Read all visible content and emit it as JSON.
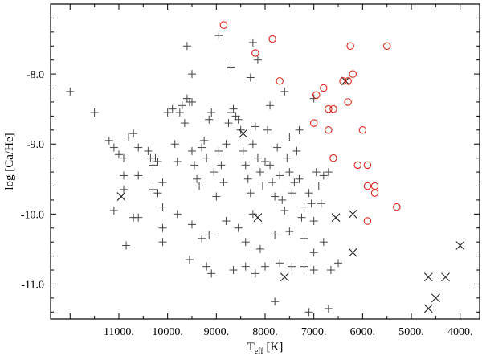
{
  "chart_data": {
    "type": "scatter",
    "title": "",
    "xlabel": {
      "main": "T",
      "sub": "eff",
      "unit": "[K]"
    },
    "ylabel": "log [Ca/He]",
    "xlim": [
      12400,
      3600
    ],
    "ylim": [
      -11.5,
      -7.0
    ],
    "x_reversed": true,
    "grid": false,
    "legend": "none",
    "x_tick_values": [
      11000,
      10000,
      9000,
      8000,
      7000,
      6000,
      5000,
      4000
    ],
    "x_tick_labels": [
      "11000.",
      "10000.",
      "9000.",
      "8000.",
      "7000.",
      "6000.",
      "5000.",
      "4000."
    ],
    "y_tick_values": [
      -8.0,
      -9.0,
      -10.0,
      -11.0
    ],
    "y_tick_labels": [
      "-8.0",
      "-9.0",
      "-10.0",
      "-11.0"
    ],
    "colors": {
      "plus": "#444444",
      "cross": "#222222",
      "circle": "#e0261f",
      "axis": "#000000"
    },
    "series": [
      {
        "marker": "plus",
        "points": [
          [
            12000,
            -8.25
          ],
          [
            11500,
            -8.55
          ],
          [
            11200,
            -8.95
          ],
          [
            11100,
            -9.05
          ],
          [
            11000,
            -9.15
          ],
          [
            10900,
            -9.2
          ],
          [
            10900,
            -9.65
          ],
          [
            11100,
            -9.95
          ],
          [
            10800,
            -8.9
          ],
          [
            10700,
            -8.85
          ],
          [
            10600,
            -9.05
          ],
          [
            10600,
            -9.45
          ],
          [
            10700,
            -10.05
          ],
          [
            10600,
            -10.05
          ],
          [
            10850,
            -10.45
          ],
          [
            10900,
            -9.45
          ],
          [
            10400,
            -9.1
          ],
          [
            10350,
            -9.2
          ],
          [
            10300,
            -9.3
          ],
          [
            10250,
            -9.2
          ],
          [
            10200,
            -9.25
          ],
          [
            10300,
            -9.65
          ],
          [
            10200,
            -9.7
          ],
          [
            10100,
            -9.55
          ],
          [
            10100,
            -9.9
          ],
          [
            10100,
            -10.2
          ],
          [
            10100,
            -10.4
          ],
          [
            10000,
            -8.55
          ],
          [
            9900,
            -8.5
          ],
          [
            9850,
            -9.0
          ],
          [
            9800,
            -9.25
          ],
          [
            9750,
            -8.55
          ],
          [
            9700,
            -8.45
          ],
          [
            9650,
            -8.7
          ],
          [
            9600,
            -8.35
          ],
          [
            9550,
            -8.4
          ],
          [
            9500,
            -8.4
          ],
          [
            9500,
            -9.1
          ],
          [
            9450,
            -9.3
          ],
          [
            9400,
            -9.5
          ],
          [
            9350,
            -9.6
          ],
          [
            9300,
            -9.05
          ],
          [
            9250,
            -8.95
          ],
          [
            9200,
            -9.2
          ],
          [
            9150,
            -8.65
          ],
          [
            9100,
            -8.55
          ],
          [
            9050,
            -9.4
          ],
          [
            9000,
            -9.75
          ],
          [
            8950,
            -9.1
          ],
          [
            8900,
            -9.3
          ],
          [
            8850,
            -9.55
          ],
          [
            8800,
            -9.0
          ],
          [
            8750,
            -8.7
          ],
          [
            8700,
            -8.55
          ],
          [
            8650,
            -8.5
          ],
          [
            8600,
            -8.6
          ],
          [
            8550,
            -8.65
          ],
          [
            8500,
            -8.8
          ],
          [
            8450,
            -9.1
          ],
          [
            8400,
            -9.3
          ],
          [
            8350,
            -9.5
          ],
          [
            8300,
            -9.7
          ],
          [
            8250,
            -9.0
          ],
          [
            8200,
            -8.75
          ],
          [
            8150,
            -9.2
          ],
          [
            8100,
            -9.4
          ],
          [
            8050,
            -9.6
          ],
          [
            8000,
            -9.25
          ],
          [
            7950,
            -8.8
          ],
          [
            7900,
            -9.3
          ],
          [
            7850,
            -9.55
          ],
          [
            7800,
            -9.75
          ],
          [
            7750,
            -9.05
          ],
          [
            7700,
            -9.45
          ],
          [
            7650,
            -9.8
          ],
          [
            7600,
            -9.95
          ],
          [
            7550,
            -9.2
          ],
          [
            7500,
            -9.4
          ],
          [
            7450,
            -9.7
          ],
          [
            7400,
            -9.55
          ],
          [
            7350,
            -9.1
          ],
          [
            7300,
            -9.5
          ],
          [
            7250,
            -10.05
          ],
          [
            7200,
            -9.9
          ],
          [
            7100,
            -9.7
          ],
          [
            7050,
            -9.85
          ],
          [
            7000,
            -10.1
          ],
          [
            6950,
            -9.4
          ],
          [
            6900,
            -9.6
          ],
          [
            6850,
            -9.85
          ],
          [
            6800,
            -9.45
          ],
          [
            6700,
            -9.4
          ],
          [
            9600,
            -7.6
          ],
          [
            9500,
            -8.0
          ],
          [
            8950,
            -7.45
          ],
          [
            8700,
            -7.9
          ],
          [
            8250,
            -7.55
          ],
          [
            8150,
            -7.8
          ],
          [
            7600,
            -8.25
          ],
          [
            7000,
            -8.35
          ],
          [
            7300,
            -8.8
          ],
          [
            7500,
            -8.9
          ],
          [
            9800,
            -10.0
          ],
          [
            9500,
            -10.15
          ],
          [
            9300,
            -10.35
          ],
          [
            9150,
            -10.3
          ],
          [
            8800,
            -10.1
          ],
          [
            8550,
            -10.2
          ],
          [
            8400,
            -10.4
          ],
          [
            8250,
            -10.0
          ],
          [
            8100,
            -10.5
          ],
          [
            7800,
            -10.3
          ],
          [
            7500,
            -10.25
          ],
          [
            7200,
            -10.35
          ],
          [
            7000,
            -10.55
          ],
          [
            6800,
            -10.4
          ],
          [
            9550,
            -10.65
          ],
          [
            9200,
            -10.75
          ],
          [
            9100,
            -10.85
          ],
          [
            8650,
            -10.8
          ],
          [
            8400,
            -10.75
          ],
          [
            8200,
            -10.85
          ],
          [
            8000,
            -10.75
          ],
          [
            7700,
            -10.7
          ],
          [
            7450,
            -10.75
          ],
          [
            7200,
            -10.75
          ],
          [
            7000,
            -10.8
          ],
          [
            6650,
            -10.8
          ],
          [
            6500,
            -10.7
          ],
          [
            6700,
            -11.35
          ],
          [
            7100,
            -11.4
          ],
          [
            7800,
            -11.25
          ],
          [
            8300,
            -8.05
          ],
          [
            7900,
            -8.45
          ]
        ]
      },
      {
        "marker": "cross",
        "points": [
          [
            10950,
            -9.75
          ],
          [
            8450,
            -8.85
          ],
          [
            8150,
            -10.05
          ],
          [
            7600,
            -10.9
          ],
          [
            6550,
            -10.05
          ],
          [
            6200,
            -10.0
          ],
          [
            6200,
            -10.55
          ],
          [
            6350,
            -8.1
          ],
          [
            4650,
            -10.9
          ],
          [
            4500,
            -11.2
          ],
          [
            4650,
            -11.35
          ],
          [
            4300,
            -10.9
          ],
          [
            4000,
            -10.45
          ]
        ]
      },
      {
        "marker": "circle",
        "points": [
          [
            8850,
            -7.3
          ],
          [
            7850,
            -7.5
          ],
          [
            8200,
            -7.7
          ],
          [
            7700,
            -8.1
          ],
          [
            6950,
            -8.3
          ],
          [
            6800,
            -8.2
          ],
          [
            6700,
            -8.5
          ],
          [
            6600,
            -8.5
          ],
          [
            6250,
            -7.6
          ],
          [
            5500,
            -7.6
          ],
          [
            6200,
            -8.0
          ],
          [
            6300,
            -8.1
          ],
          [
            6400,
            -8.1
          ],
          [
            6300,
            -8.4
          ],
          [
            6700,
            -8.8
          ],
          [
            7000,
            -8.7
          ],
          [
            6600,
            -9.2
          ],
          [
            6000,
            -8.8
          ],
          [
            6100,
            -9.3
          ],
          [
            5900,
            -9.3
          ],
          [
            5900,
            -9.6
          ],
          [
            5750,
            -9.6
          ],
          [
            5750,
            -9.7
          ],
          [
            5900,
            -10.1
          ],
          [
            5300,
            -9.9
          ]
        ]
      }
    ]
  }
}
